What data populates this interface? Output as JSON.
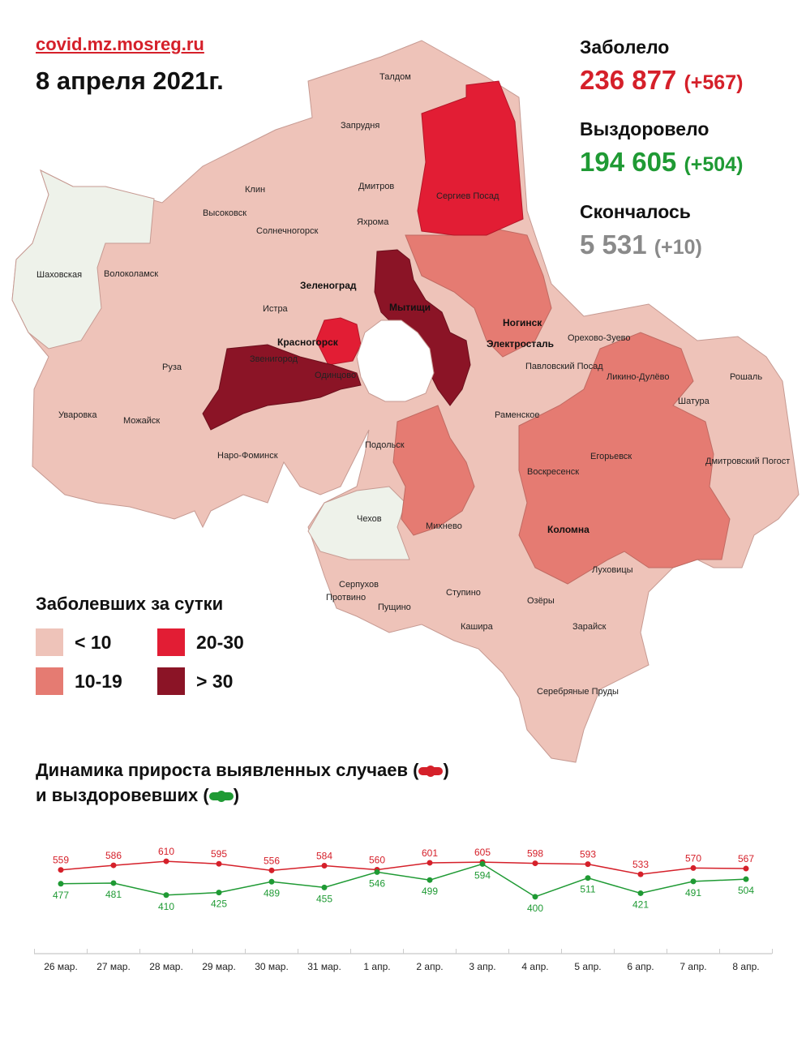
{
  "header": {
    "source": "covid.mz.mosreg.ru",
    "date": "8 апреля 2021г."
  },
  "stats": {
    "cases_label": "Заболело",
    "cases_value": "236 877",
    "cases_delta": "(+567)",
    "recovered_label": "Выздоровело",
    "recovered_value": "194 605",
    "recovered_delta": "(+504)",
    "deaths_label": "Скончалось",
    "deaths_value": "5 531",
    "deaths_delta": "(+10)"
  },
  "colors": {
    "accent_red": "#d5202a",
    "accent_green": "#1f9a34",
    "muted_gray": "#8a8a8a",
    "level_lt10": "#eec3b9",
    "level_10_19": "#e57b72",
    "level_20_30": "#e21d34",
    "level_gt30": "#8b1426",
    "no_data": "#eef2ea"
  },
  "map": {
    "towns": [
      "Талдом",
      "Запрудня",
      "Дмитров",
      "Яхрома",
      "Клин",
      "Высоковск",
      "Солнечногорск",
      "Сергиев Посад",
      "Шаховская",
      "Волоколамск",
      "Зеленоград",
      "Истра",
      "Мытищи",
      "Красногорск",
      "Звенигород",
      "Одинцово",
      "Руза",
      "Уваровка",
      "Можайск",
      "Наро-Фоминск",
      "Ногинск",
      "Электросталь",
      "Павловский Посад",
      "Орехово-Зуево",
      "Ликино-Дулёво",
      "Рошаль",
      "Шатура",
      "Раменское",
      "Воскресенск",
      "Егорьевск",
      "Дмитровский Погост",
      "Подольск",
      "Чехов",
      "Михнево",
      "Коломна",
      "Серпухов",
      "Протвино",
      "Пущино",
      "Ступино",
      "Озёры",
      "Луховицы",
      "Кашира",
      "Зарайск",
      "Серебряные Пруды"
    ]
  },
  "legend": {
    "title": "Заболевших за сутки",
    "items": [
      {
        "label": "< 10",
        "color": "#eec3b9"
      },
      {
        "label": "20-30",
        "color": "#e21d34"
      },
      {
        "label": "10-19",
        "color": "#e57b72"
      },
      {
        "label": "> 30",
        "color": "#8b1426"
      }
    ]
  },
  "chart_title": {
    "line1_prefix": "Динамика прироста выявленных случаев (",
    "line1_suffix": ")",
    "line2_prefix": "и выздоровевших (",
    "line2_suffix": ")"
  },
  "chart_data": {
    "type": "line",
    "categories": [
      "26 мар.",
      "27 мар.",
      "28 мар.",
      "29 мар.",
      "30 мар.",
      "31 мар.",
      "1 апр.",
      "2 апр.",
      "3 апр.",
      "4 апр.",
      "5 апр.",
      "6 апр.",
      "7 апр.",
      "8 апр."
    ],
    "series": [
      {
        "values": [
          559,
          586,
          610,
          595,
          556,
          584,
          560,
          601,
          605,
          598,
          593,
          533,
          570,
          567
        ],
        "color": "#d5202a"
      },
      {
        "values": [
          477,
          481,
          410,
          425,
          489,
          455,
          546,
          499,
          594,
          400,
          511,
          421,
          491,
          504
        ],
        "color": "#1f9a34"
      }
    ],
    "grid": false,
    "legend": "title-inline"
  }
}
